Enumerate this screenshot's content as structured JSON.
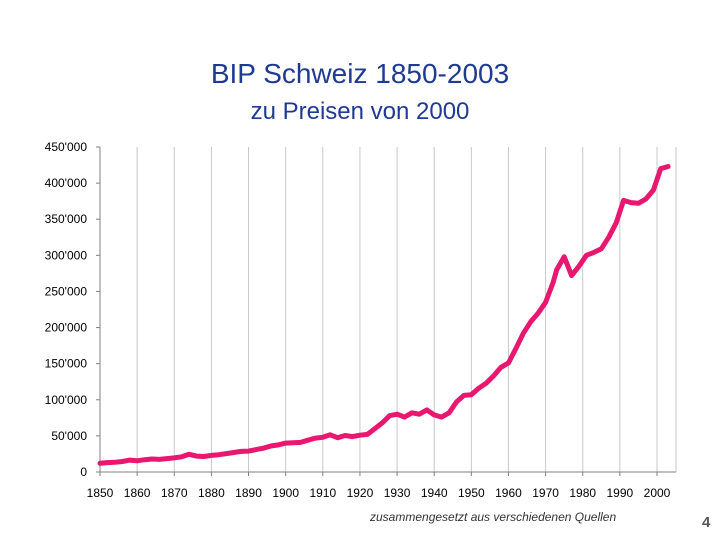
{
  "slide": {
    "title": "BIP Schweiz 1850-2003",
    "subtitle": "zu Preisen von 2000",
    "source_note": "zusammengesetzt aus verschiedenen Quellen",
    "page_number": "4"
  },
  "chart_data": {
    "type": "line",
    "title": "BIP Schweiz 1850-2003",
    "subtitle": "zu Preisen von 2000",
    "xlabel": "",
    "ylabel": "",
    "xlim": [
      1850,
      2000
    ],
    "ylim": [
      0,
      450000
    ],
    "grid": {
      "x": true,
      "y": false
    },
    "line_color": "#e8176f",
    "gridline_color": "#c8c8c8",
    "x_ticks": [
      1850,
      1860,
      1870,
      1880,
      1890,
      1900,
      1910,
      1920,
      1930,
      1940,
      1950,
      1960,
      1970,
      1980,
      1990,
      2000
    ],
    "x_tick_labels": [
      "1850",
      "1860",
      "1870",
      "1880",
      "1890",
      "1900",
      "1910",
      "1920",
      "1930",
      "1940",
      "1950",
      "1960",
      "1970",
      "1980",
      "1990",
      "2000"
    ],
    "y_ticks": [
      0,
      50000,
      100000,
      150000,
      200000,
      250000,
      300000,
      350000,
      400000,
      450000
    ],
    "y_tick_labels": [
      "0",
      "50'000",
      "100'000",
      "150'000",
      "200'000",
      "250'000",
      "300'000",
      "350'000",
      "400'000",
      "450'000"
    ],
    "series": [
      {
        "name": "BIP Schweiz",
        "x": [
          1850,
          1852,
          1854,
          1856,
          1858,
          1860,
          1862,
          1864,
          1866,
          1868,
          1870,
          1872,
          1874,
          1876,
          1878,
          1880,
          1882,
          1884,
          1886,
          1888,
          1890,
          1892,
          1894,
          1896,
          1898,
          1900,
          1902,
          1904,
          1906,
          1908,
          1910,
          1912,
          1914,
          1916,
          1918,
          1920,
          1922,
          1924,
          1926,
          1928,
          1930,
          1932,
          1934,
          1936,
          1938,
          1940,
          1942,
          1944,
          1946,
          1948,
          1950,
          1952,
          1954,
          1956,
          1958,
          1960,
          1962,
          1964,
          1966,
          1968,
          1970,
          1972,
          1973,
          1975,
          1977,
          1979,
          1981,
          1983,
          1985,
          1987,
          1989,
          1991,
          1993,
          1995,
          1997,
          1999,
          2001,
          2003
        ],
        "values": [
          12000,
          13000,
          13500,
          14500,
          16500,
          15500,
          17000,
          18000,
          17500,
          18500,
          19500,
          21000,
          24500,
          22000,
          21500,
          23000,
          24000,
          25500,
          27000,
          28500,
          29000,
          31000,
          33000,
          36000,
          37500,
          40000,
          40500,
          41000,
          44000,
          47000,
          48000,
          51500,
          47500,
          50500,
          49000,
          51000,
          52000,
          60000,
          68000,
          78000,
          80000,
          76000,
          82000,
          80000,
          86000,
          79000,
          76000,
          82000,
          97000,
          106000,
          107000,
          116000,
          123000,
          133000,
          145000,
          151000,
          171000,
          192000,
          208000,
          220000,
          235000,
          262000,
          280000,
          298000,
          272000,
          285000,
          300000,
          304000,
          309000,
          325000,
          345000,
          376000,
          373000,
          372000,
          378000,
          390000,
          420000,
          423000
        ]
      }
    ]
  }
}
